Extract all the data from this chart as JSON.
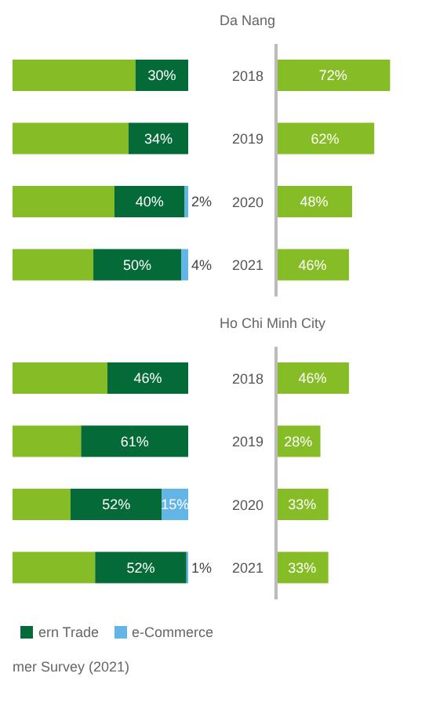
{
  "chart_data": [
    {
      "type": "bar",
      "orientation": "horizontal",
      "stacked": true,
      "categories": [
        null,
        null,
        null,
        null
      ],
      "xlim": [
        0,
        100
      ],
      "tick_labels": false,
      "series": [
        {
          "color": "#86bc25",
          "values": [
            70,
            66,
            58,
            46
          ],
          "value_labels": [
            null,
            null,
            null,
            null
          ]
        },
        {
          "color": "#046a38",
          "values": [
            30,
            34,
            40,
            50
          ],
          "value_labels": [
            "30%",
            "34%",
            "40%",
            "50%"
          ]
        },
        {
          "color": "#62b5e5",
          "values": [
            null,
            null,
            2,
            4
          ],
          "value_labels": [
            null,
            null,
            "2%",
            "4%"
          ]
        }
      ]
    },
    {
      "type": "bar",
      "orientation": "horizontal",
      "stacked": true,
      "title": "Da Nang",
      "categories": [
        "2018",
        "2019",
        "2020",
        "2021"
      ],
      "xlim": [
        0,
        100
      ],
      "tick_labels": "y",
      "series": [
        {
          "color": "#86bc25",
          "values": [
            72,
            62,
            48,
            46
          ],
          "value_labels": [
            "72%",
            "62%",
            "48%",
            "46%"
          ]
        }
      ]
    },
    {
      "type": "bar",
      "orientation": "horizontal",
      "stacked": true,
      "categories": [
        null,
        null,
        null,
        null
      ],
      "xlim": [
        0,
        100
      ],
      "tick_labels": false,
      "legend": "bottom",
      "annotations": [
        "mer Survey (2021)"
      ],
      "series": [
        {
          "color": "#86bc25",
          "values": [
            54,
            39,
            33,
            47
          ],
          "value_labels": [
            null,
            null,
            null,
            null
          ]
        },
        {
          "name": "ern Trade",
          "color": "#046a38",
          "values": [
            46,
            61,
            52,
            52
          ],
          "value_labels": [
            "46%",
            "61%",
            "52%",
            "52%"
          ]
        },
        {
          "name": "e-Commerce",
          "color": "#62b5e5",
          "values": [
            null,
            null,
            15,
            1
          ],
          "value_labels": [
            null,
            null,
            "15%",
            "1%"
          ]
        }
      ]
    },
    {
      "type": "bar",
      "orientation": "horizontal",
      "stacked": true,
      "title": "Ho Chi Minh City",
      "categories": [
        "2018",
        "2019",
        "2020",
        "2021"
      ],
      "xlim": [
        0,
        100
      ],
      "tick_labels": "y",
      "series": [
        {
          "color": "#86bc25",
          "values": [
            46,
            28,
            33,
            33
          ],
          "value_labels": [
            "46%",
            "28%",
            "33%",
            "33%"
          ]
        }
      ]
    }
  ]
}
